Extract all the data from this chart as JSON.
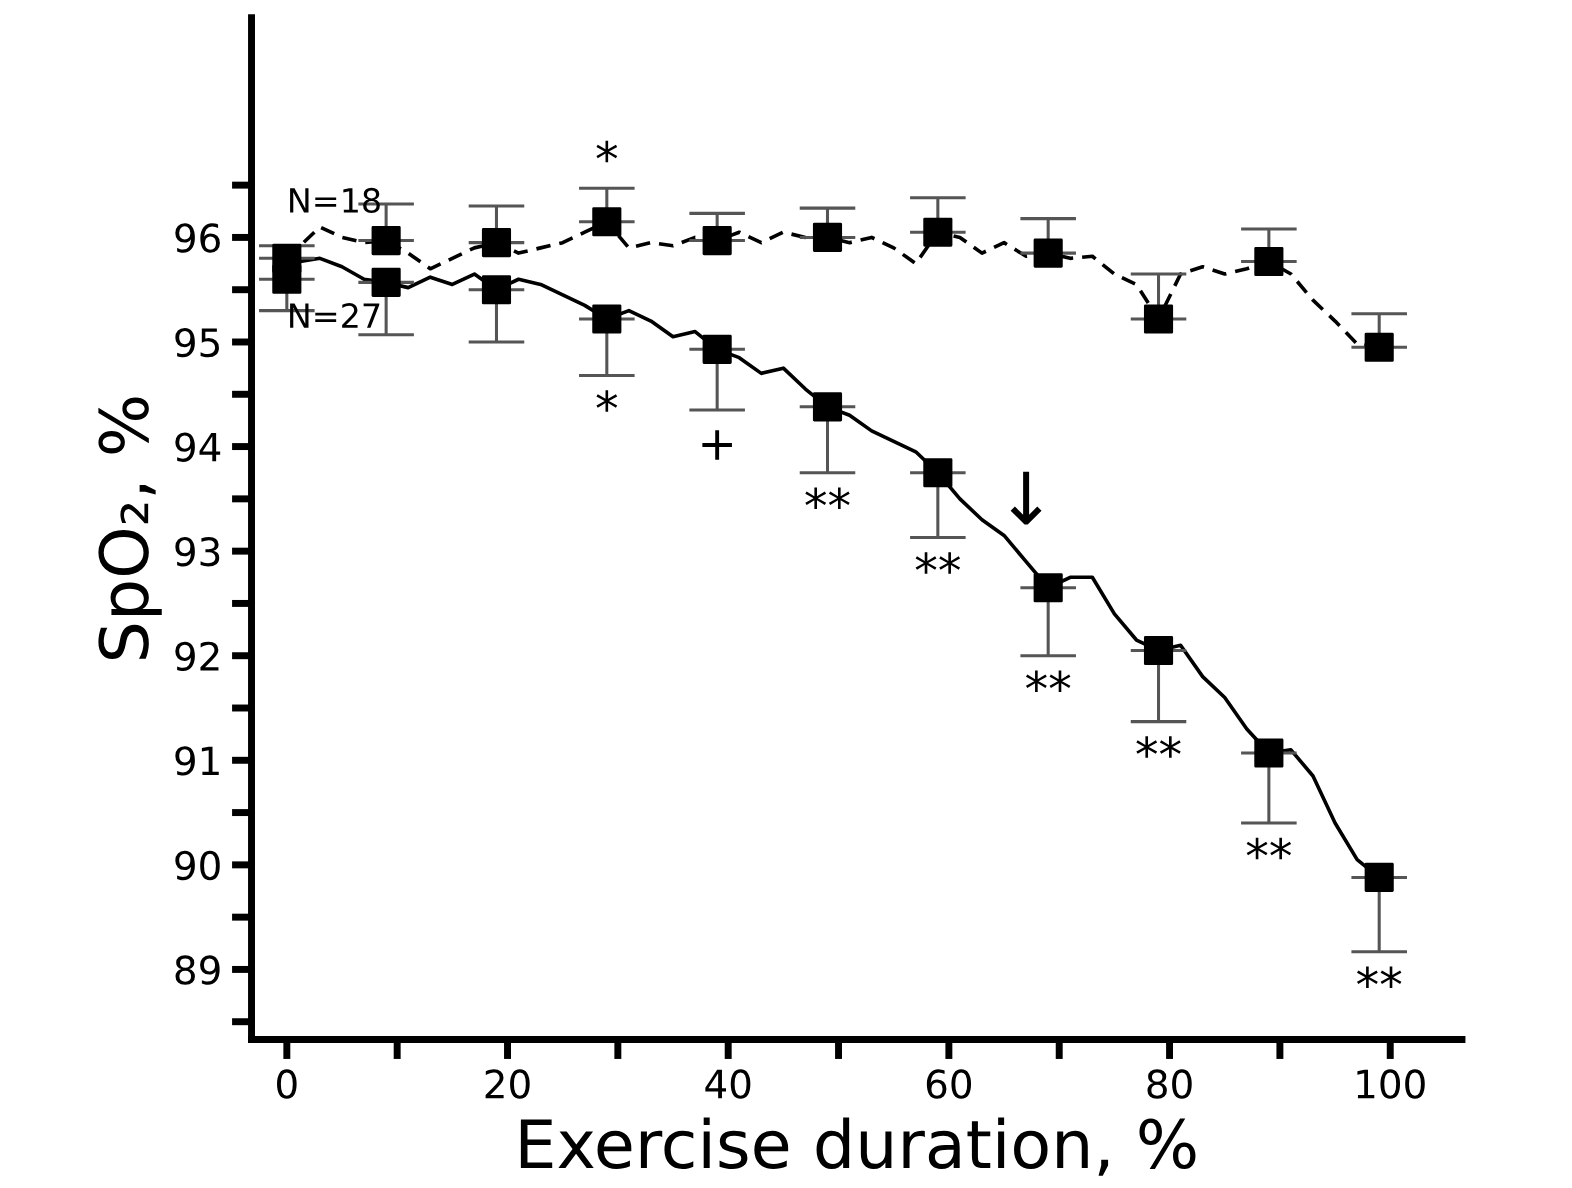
{
  "chart_data": {
    "type": "line",
    "xlabel": "Exercise duration, %",
    "ylabel": "SpO₂, %",
    "xlim": [
      -3.2,
      106.5
    ],
    "ylim": [
      88.33,
      98.1
    ],
    "xticks": [
      0,
      {
        "value": 10,
        "label": null
      },
      20,
      {
        "value": 30,
        "label": null
      },
      40,
      {
        "value": 50,
        "label": null
      },
      60,
      {
        "value": 70,
        "label": null
      },
      80,
      {
        "value": 90,
        "label": null
      },
      100
    ],
    "yticks": [
      {
        "value": 88.5,
        "label": null
      },
      89,
      {
        "value": 89.5,
        "label": null
      },
      90,
      {
        "value": 90.5,
        "label": null
      },
      91,
      {
        "value": 91.5,
        "label": null
      },
      92,
      {
        "value": 92.5,
        "label": null
      },
      93,
      {
        "value": 93.5,
        "label": null
      },
      94,
      {
        "value": 94.5,
        "label": null
      },
      95,
      {
        "value": 95.5,
        "label": null
      },
      96,
      {
        "value": 96.5,
        "label": null
      }
    ],
    "grid": false,
    "legend": false,
    "series": [
      {
        "name": "N=18",
        "color": "#000000",
        "line_style": "dashed",
        "marker": "none",
        "x": [
          0,
          3,
          5,
          7,
          9,
          11,
          13,
          15,
          17,
          19,
          21,
          23,
          25,
          27,
          29,
          31,
          33,
          35,
          37,
          39,
          41,
          43,
          45,
          47,
          49,
          51,
          53,
          55,
          57,
          59,
          61,
          63,
          65,
          67,
          69,
          71,
          73,
          75,
          77,
          79,
          81,
          83,
          85,
          87,
          89,
          91,
          93,
          95,
          97,
          99
        ],
        "values": [
          95.8,
          96.1,
          96.0,
          95.95,
          95.97,
          95.85,
          95.7,
          95.8,
          95.9,
          95.95,
          95.85,
          95.9,
          95.95,
          96.05,
          96.15,
          95.9,
          95.95,
          95.92,
          96.0,
          95.97,
          96.05,
          95.95,
          96.05,
          96.0,
          96.0,
          95.95,
          96.0,
          95.9,
          95.75,
          96.05,
          96.0,
          95.85,
          95.95,
          95.82,
          95.85,
          95.8,
          95.82,
          95.65,
          95.55,
          95.22,
          95.65,
          95.72,
          95.65,
          95.7,
          95.77,
          95.65,
          95.4,
          95.2,
          94.98,
          94.95
        ]
      },
      {
        "name": "N=27",
        "color": "#000000",
        "line_style": "solid",
        "marker": "none",
        "x": [
          0,
          3,
          5,
          7,
          9,
          11,
          13,
          15,
          17,
          19,
          21,
          23,
          25,
          27,
          29,
          31,
          33,
          35,
          37,
          39,
          41,
          43,
          45,
          47,
          49,
          51,
          53,
          55,
          57,
          59,
          61,
          63,
          65,
          67,
          69,
          71,
          73,
          75,
          77,
          79,
          81,
          83,
          85,
          87,
          89,
          91,
          93,
          95,
          97,
          99
        ],
        "values": [
          95.75,
          95.8,
          95.72,
          95.6,
          95.57,
          95.52,
          95.62,
          95.55,
          95.65,
          95.5,
          95.6,
          95.55,
          95.45,
          95.35,
          95.22,
          95.3,
          95.2,
          95.05,
          95.1,
          94.93,
          94.85,
          94.7,
          94.75,
          94.55,
          94.38,
          94.3,
          94.15,
          94.05,
          93.95,
          93.75,
          93.5,
          93.3,
          93.15,
          92.9,
          92.65,
          92.75,
          92.75,
          92.4,
          92.15,
          92.05,
          92.1,
          91.8,
          91.6,
          91.3,
          91.07,
          91.1,
          90.85,
          90.4,
          90.05,
          89.88
        ]
      },
      {
        "type": "scatter",
        "color": "#000000",
        "marker": "square",
        "x": [
          0,
          9,
          19,
          29,
          39,
          49,
          59,
          69,
          79,
          89,
          99
        ],
        "values": [
          95.8,
          95.97,
          95.95,
          96.15,
          95.97,
          96.0,
          96.05,
          95.85,
          95.22,
          95.77,
          94.95
        ],
        "value_labels": [
          null,
          null,
          null,
          "*",
          null,
          null,
          null,
          null,
          null,
          null,
          null
        ],
        "errors": [
          [
            95.8,
            95.92
          ],
          [
            95.97,
            96.32
          ],
          [
            95.95,
            96.3
          ],
          [
            96.15,
            96.47
          ],
          [
            95.97,
            96.23
          ],
          [
            96.0,
            96.28
          ],
          [
            96.05,
            96.38
          ],
          [
            95.85,
            96.18
          ],
          [
            95.22,
            95.65
          ],
          [
            95.77,
            96.08
          ],
          [
            94.95,
            95.27
          ]
        ]
      },
      {
        "type": "scatter",
        "color": "#000000",
        "marker": "square",
        "x": [
          0,
          9,
          19,
          29,
          39,
          49,
          59,
          69,
          79,
          89,
          99
        ],
        "values": [
          95.6,
          95.57,
          95.5,
          95.22,
          94.93,
          94.38,
          93.75,
          92.65,
          92.05,
          91.07,
          89.88
        ],
        "value_labels": [
          null,
          null,
          null,
          "*",
          "+",
          "**",
          "**",
          "**",
          "**",
          "**",
          "**"
        ],
        "errors": [
          [
            95.3,
            95.6
          ],
          [
            95.07,
            95.57
          ],
          [
            95.0,
            95.5
          ],
          [
            94.68,
            95.22
          ],
          [
            94.35,
            94.93
          ],
          [
            93.75,
            94.38
          ],
          [
            93.13,
            93.75
          ],
          [
            92.0,
            92.65
          ],
          [
            91.37,
            92.05
          ],
          [
            90.4,
            91.07
          ],
          [
            89.17,
            89.88
          ]
        ]
      }
    ],
    "annotations": [
      {
        "text": "↓",
        "x": 67,
        "y": 92.9
      }
    ]
  }
}
